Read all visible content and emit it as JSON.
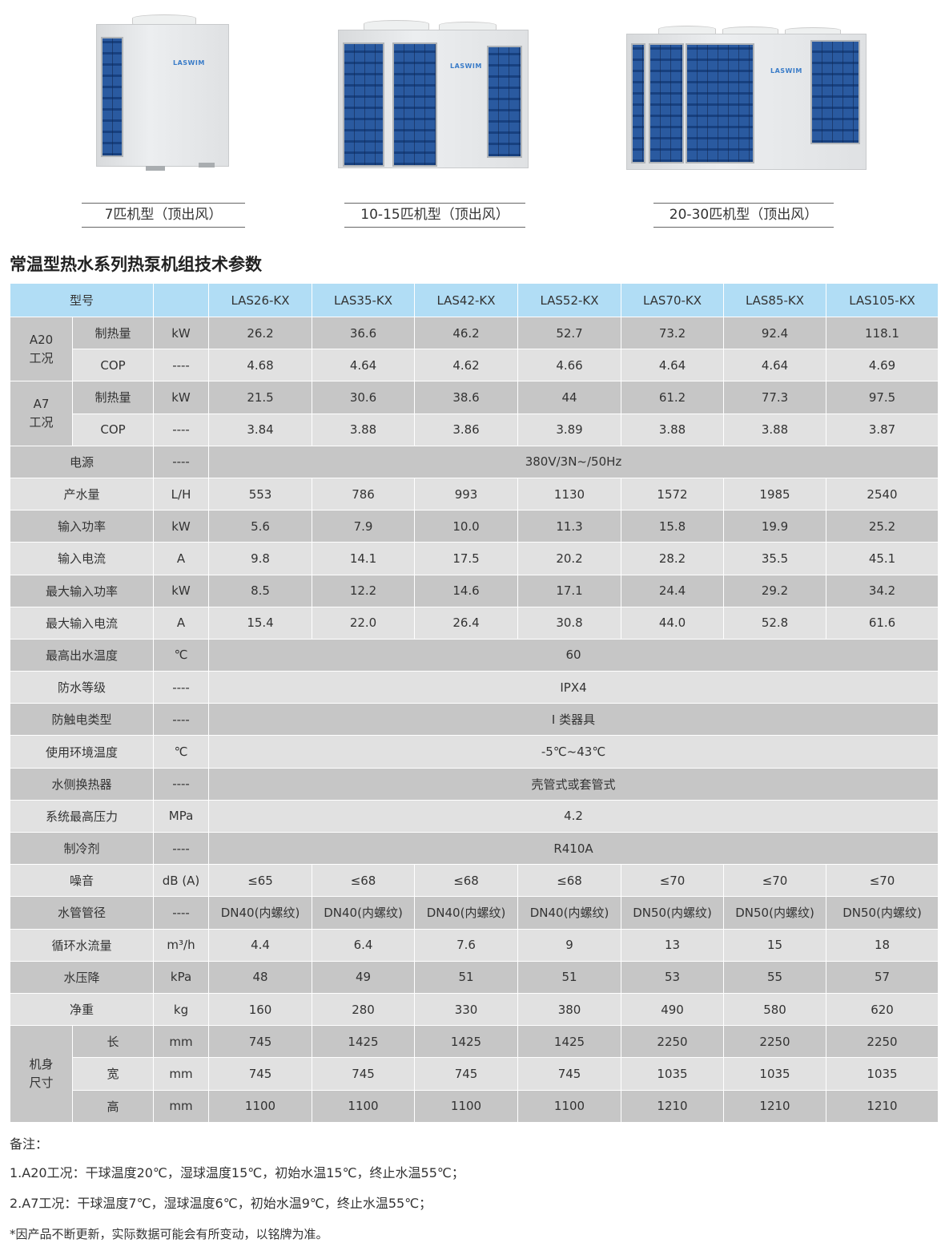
{
  "brand": "LASWIM",
  "products": [
    {
      "caption": "7匹机型（顶出风）"
    },
    {
      "caption": "10-15匹机型（顶出风）"
    },
    {
      "caption": "20-30匹机型（顶出风）"
    }
  ],
  "title": "常温型热水系列热泵机组技术参数",
  "colors": {
    "header": "#b1ddf5",
    "row_dark": "#c6c6c6",
    "row_light": "#e1e1e1",
    "coil": "#1f4c8f"
  },
  "table": {
    "header": {
      "label": "型号",
      "unit": "",
      "models": [
        "LAS26-KX",
        "LAS35-KX",
        "LAS42-KX",
        "LAS52-KX",
        "LAS70-KX",
        "LAS85-KX",
        "LAS105-KX"
      ]
    },
    "rows": [
      {
        "group": [
          "A20",
          "工况"
        ],
        "sub": [
          {
            "label": "制热量",
            "unit": "kW",
            "values": [
              "26.2",
              "36.6",
              "46.2",
              "52.7",
              "73.2",
              "92.4",
              "118.1"
            ]
          },
          {
            "label": "COP",
            "unit": "----",
            "values": [
              "4.68",
              "4.64",
              "4.62",
              "4.66",
              "4.64",
              "4.64",
              "4.69"
            ]
          }
        ]
      },
      {
        "group": [
          "A7",
          "工况"
        ],
        "sub": [
          {
            "label": "制热量",
            "unit": "kW",
            "values": [
              "21.5",
              "30.6",
              "38.6",
              "44",
              "61.2",
              "77.3",
              "97.5"
            ]
          },
          {
            "label": "COP",
            "unit": "----",
            "values": [
              "3.84",
              "3.88",
              "3.86",
              "3.89",
              "3.88",
              "3.88",
              "3.87"
            ]
          }
        ]
      },
      {
        "label": "电源",
        "unit": "----",
        "merged": "380V/3N~/50Hz"
      },
      {
        "label": "产水量",
        "unit": "L/H",
        "values": [
          "553",
          "786",
          "993",
          "1130",
          "1572",
          "1985",
          "2540"
        ]
      },
      {
        "label": "输入功率",
        "unit": "kW",
        "values": [
          "5.6",
          "7.9",
          "10.0",
          "11.3",
          "15.8",
          "19.9",
          "25.2"
        ]
      },
      {
        "label": "输入电流",
        "unit": "A",
        "values": [
          "9.8",
          "14.1",
          "17.5",
          "20.2",
          "28.2",
          "35.5",
          "45.1"
        ]
      },
      {
        "label": "最大输入功率",
        "unit": "kW",
        "values": [
          "8.5",
          "12.2",
          "14.6",
          "17.1",
          "24.4",
          "29.2",
          "34.2"
        ]
      },
      {
        "label": "最大输入电流",
        "unit": "A",
        "values": [
          "15.4",
          "22.0",
          "26.4",
          "30.8",
          "44.0",
          "52.8",
          "61.6"
        ]
      },
      {
        "label": "最高出水温度",
        "unit": "℃",
        "merged": "60"
      },
      {
        "label": "防水等级",
        "unit": "----",
        "merged": "IPX4"
      },
      {
        "label": "防触电类型",
        "unit": "----",
        "merged": "I 类器具"
      },
      {
        "label": "使用环境温度",
        "unit": "℃",
        "merged": "-5℃~43℃"
      },
      {
        "label": "水侧换热器",
        "unit": "----",
        "merged": "壳管式或套管式"
      },
      {
        "label": "系统最高压力",
        "unit": "MPa",
        "merged": "4.2"
      },
      {
        "label": "制冷剂",
        "unit": "----",
        "merged": "R410A"
      },
      {
        "label": "噪音",
        "unit": "dB (A)",
        "values": [
          "≤65",
          "≤68",
          "≤68",
          "≤68",
          "≤70",
          "≤70",
          "≤70"
        ]
      },
      {
        "label": "水管管径",
        "unit": "----",
        "values": [
          "DN40(内螺纹)",
          "DN40(内螺纹)",
          "DN40(内螺纹)",
          "DN40(内螺纹)",
          "DN50(内螺纹)",
          "DN50(内螺纹)",
          "DN50(内螺纹)"
        ]
      },
      {
        "label": "循环水流量",
        "unit": "m³/h",
        "values": [
          "4.4",
          "6.4",
          "7.6",
          "9",
          "13",
          "15",
          "18"
        ]
      },
      {
        "label": "水压降",
        "unit": "kPa",
        "values": [
          "48",
          "49",
          "51",
          "51",
          "53",
          "55",
          "57"
        ]
      },
      {
        "label": "净重",
        "unit": "kg",
        "values": [
          "160",
          "280",
          "330",
          "380",
          "490",
          "580",
          "620"
        ]
      },
      {
        "group": [
          "机身",
          "尺寸"
        ],
        "sub": [
          {
            "label": "长",
            "unit": "mm",
            "values": [
              "745",
              "1425",
              "1425",
              "1425",
              "2250",
              "2250",
              "2250"
            ]
          },
          {
            "label": "宽",
            "unit": "mm",
            "values": [
              "745",
              "745",
              "745",
              "745",
              "1035",
              "1035",
              "1035"
            ]
          },
          {
            "label": "高",
            "unit": "mm",
            "values": [
              "1100",
              "1100",
              "1100",
              "1100",
              "1210",
              "1210",
              "1210"
            ]
          }
        ]
      }
    ]
  },
  "notes": [
    "备注：",
    "1.A20工况：干球温度20℃，湿球温度15℃，初始水温15℃，终止水温55℃；",
    "2.A7工况：干球温度7℃，湿球温度6℃，初始水温9℃，终止水温55℃；",
    "*因产品不断更新，实际数据可能会有所变动，以铭牌为准。"
  ]
}
